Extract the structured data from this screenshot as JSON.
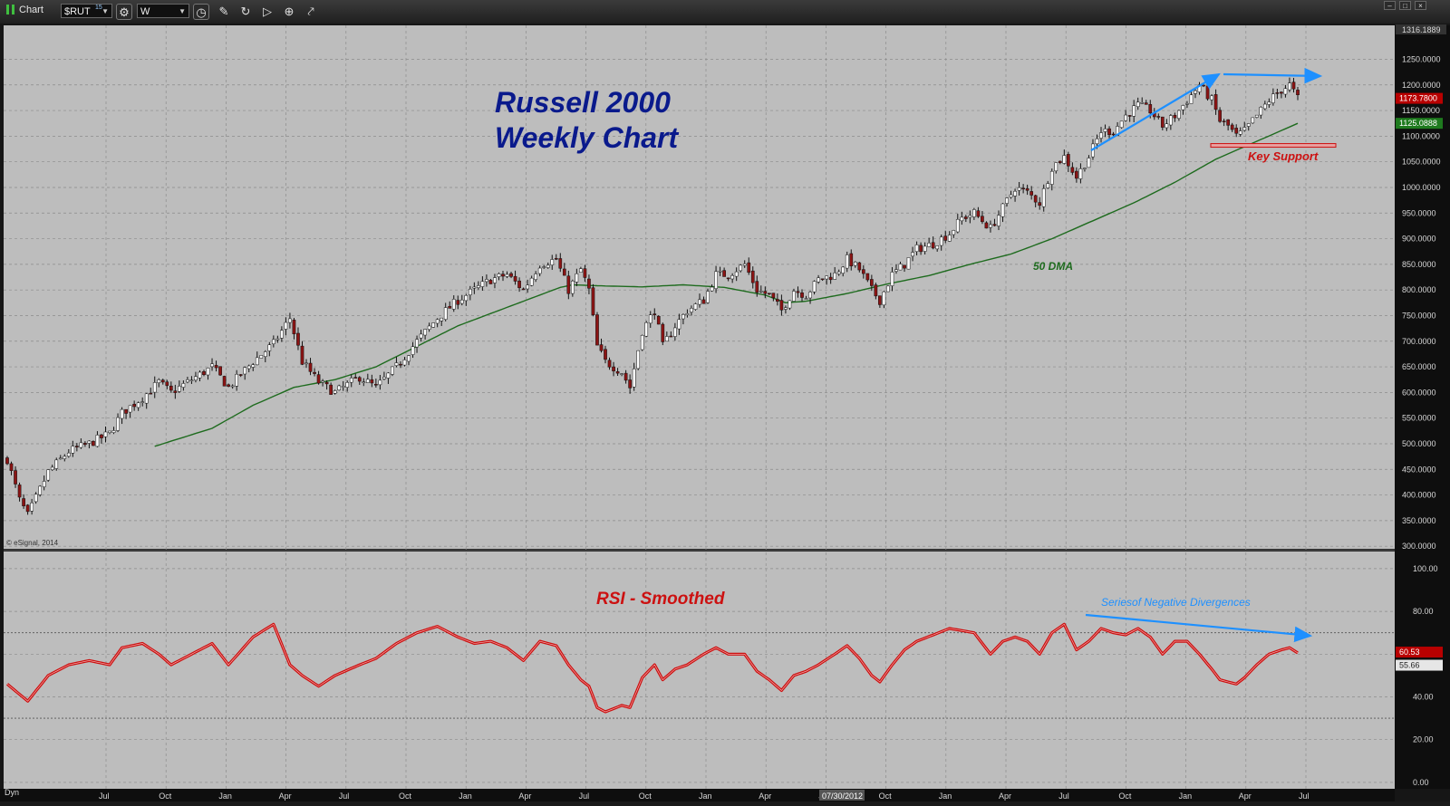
{
  "toolbar": {
    "title": "Chart",
    "symbol": "$RUT",
    "symbol_sup": "15",
    "interval": "W",
    "window_buttons": [
      "–",
      "□",
      "×"
    ]
  },
  "annotations": {
    "title_line1": "Russell 2000",
    "title_line2": "Weekly Chart",
    "dma_label": "50 DMA",
    "support_label": "Key Support",
    "rsi_title": "RSI - Smoothed",
    "divergence_label": "Seriesof Negative Divergences",
    "copyright": "© eSignal, 2014"
  },
  "footer": {
    "dyn_label": "Dyn"
  },
  "colors": {
    "panel_bg": "#bdbdbd",
    "grid": "#8c8c8c",
    "up_candle": "#ffffff",
    "down_candle": "#8b1414",
    "ma_line": "#1e6b1e",
    "rsi_line": "#cc1111",
    "annotation_blue": "#1e90ff",
    "title_navy": "#0a1a8c",
    "support_red": "#cc1111",
    "last_price_bg": "#b80000",
    "ma_value_bg": "#1e7a1e"
  },
  "chart_data": [
    {
      "type": "candlestick",
      "title": "Russell 2000 Weekly Chart",
      "symbol": "$RUT",
      "interval": "weekly",
      "period": "Mar 2009 – Jul 2014",
      "y_ticks": [
        "300.0000",
        "350.0000",
        "400.0000",
        "450.0000",
        "500.0000",
        "550.0000",
        "600.0000",
        "650.0000",
        "700.0000",
        "750.0000",
        "800.0000",
        "850.0000",
        "900.0000",
        "950.0000",
        "1000.0000",
        "1050.0000",
        "1100.0000",
        "1150.0000",
        "1200.0000",
        "1250.0000"
      ],
      "ylim": [
        295,
        1316.1889
      ],
      "x_tick_labels": [
        "Jul",
        "Oct",
        "Jan",
        "Apr",
        "Jul",
        "Oct",
        "Jan",
        "Apr",
        "Jul",
        "Oct",
        "Jan",
        "Apr",
        "Jul",
        "Oct",
        "Jan",
        "Apr",
        "Jul",
        "Oct",
        "Jan",
        "Apr",
        "Jul"
      ],
      "cursor_date": "07/30/2012",
      "max_label": "1316.1889",
      "last_price": "1173.7800",
      "ma_value": "1125.0888",
      "key_support_level": 1082,
      "close_anchors": [
        [
          0,
          470
        ],
        [
          3,
          390
        ],
        [
          5,
          360
        ],
        [
          10,
          445
        ],
        [
          15,
          485
        ],
        [
          20,
          500
        ],
        [
          25,
          520
        ],
        [
          28,
          560
        ],
        [
          33,
          590
        ],
        [
          37,
          620
        ],
        [
          40,
          600
        ],
        [
          45,
          625
        ],
        [
          50,
          650
        ],
        [
          54,
          610
        ],
        [
          60,
          660
        ],
        [
          65,
          695
        ],
        [
          69,
          745
        ],
        [
          72,
          660
        ],
        [
          76,
          620
        ],
        [
          80,
          600
        ],
        [
          86,
          630
        ],
        [
          90,
          610
        ],
        [
          95,
          650
        ],
        [
          100,
          700
        ],
        [
          105,
          745
        ],
        [
          110,
          780
        ],
        [
          114,
          800
        ],
        [
          118,
          820
        ],
        [
          122,
          830
        ],
        [
          126,
          800
        ],
        [
          130,
          850
        ],
        [
          134,
          860
        ],
        [
          137,
          800
        ],
        [
          140,
          840
        ],
        [
          142,
          800
        ],
        [
          144,
          690
        ],
        [
          146,
          660
        ],
        [
          150,
          640
        ],
        [
          152,
          610
        ],
        [
          155,
          720
        ],
        [
          158,
          760
        ],
        [
          160,
          690
        ],
        [
          163,
          730
        ],
        [
          166,
          760
        ],
        [
          170,
          780
        ],
        [
          173,
          830
        ],
        [
          176,
          830
        ],
        [
          180,
          850
        ],
        [
          183,
          800
        ],
        [
          186,
          790
        ],
        [
          189,
          760
        ],
        [
          192,
          800
        ],
        [
          195,
          790
        ],
        [
          198,
          820
        ],
        [
          202,
          830
        ],
        [
          205,
          860
        ],
        [
          208,
          840
        ],
        [
          211,
          800
        ],
        [
          213,
          780
        ],
        [
          216,
          830
        ],
        [
          219,
          850
        ],
        [
          222,
          880
        ],
        [
          226,
          890
        ],
        [
          230,
          910
        ],
        [
          233,
          940
        ],
        [
          236,
          950
        ],
        [
          240,
          920
        ],
        [
          243,
          960
        ],
        [
          246,
          1000
        ],
        [
          249,
          990
        ],
        [
          252,
          970
        ],
        [
          255,
          1040
        ],
        [
          258,
          1060
        ],
        [
          261,
          1020
        ],
        [
          264,
          1060
        ],
        [
          267,
          1110
        ],
        [
          270,
          1110
        ],
        [
          273,
          1140
        ],
        [
          276,
          1160
        ],
        [
          279,
          1150
        ],
        [
          282,
          1120
        ],
        [
          285,
          1140
        ],
        [
          288,
          1170
        ],
        [
          291,
          1200
        ],
        [
          294,
          1170
        ],
        [
          296,
          1130
        ],
        [
          298,
          1120
        ],
        [
          300,
          1100
        ],
        [
          302,
          1110
        ],
        [
          305,
          1140
        ],
        [
          308,
          1170
        ],
        [
          311,
          1190
        ],
        [
          313,
          1200
        ],
        [
          315,
          1173.78
        ]
      ],
      "ma_anchors": [
        [
          36,
          495
        ],
        [
          50,
          530
        ],
        [
          60,
          575
        ],
        [
          70,
          610
        ],
        [
          80,
          625
        ],
        [
          90,
          650
        ],
        [
          100,
          690
        ],
        [
          110,
          730
        ],
        [
          120,
          760
        ],
        [
          130,
          790
        ],
        [
          135,
          805
        ],
        [
          138,
          810
        ],
        [
          145,
          808
        ],
        [
          155,
          806
        ],
        [
          165,
          810
        ],
        [
          175,
          805
        ],
        [
          185,
          790
        ],
        [
          190,
          775
        ],
        [
          195,
          778
        ],
        [
          205,
          793
        ],
        [
          215,
          812
        ],
        [
          225,
          828
        ],
        [
          235,
          850
        ],
        [
          245,
          870
        ],
        [
          255,
          900
        ],
        [
          265,
          935
        ],
        [
          275,
          970
        ],
        [
          285,
          1010
        ],
        [
          295,
          1055
        ],
        [
          305,
          1090
        ],
        [
          315,
          1125
        ]
      ],
      "series": [
        {
          "name": "50 DMA",
          "type": "line"
        }
      ]
    },
    {
      "type": "line",
      "title": "RSI - Smoothed",
      "y_ticks": [
        "0.00",
        "20.00",
        "40.00",
        "60.00",
        "80.00",
        "100.00"
      ],
      "ylim": [
        -3,
        108
      ],
      "reference_lines": [
        70,
        30
      ],
      "last_values": [
        "60.53",
        "55.66"
      ],
      "anchors": [
        [
          0,
          46
        ],
        [
          5,
          38
        ],
        [
          10,
          50
        ],
        [
          15,
          55
        ],
        [
          20,
          57
        ],
        [
          25,
          55
        ],
        [
          28,
          63
        ],
        [
          33,
          65
        ],
        [
          37,
          60
        ],
        [
          40,
          55
        ],
        [
          45,
          60
        ],
        [
          50,
          65
        ],
        [
          54,
          55
        ],
        [
          60,
          68
        ],
        [
          65,
          74
        ],
        [
          69,
          55
        ],
        [
          72,
          50
        ],
        [
          76,
          45
        ],
        [
          80,
          50
        ],
        [
          86,
          55
        ],
        [
          90,
          58
        ],
        [
          95,
          65
        ],
        [
          100,
          70
        ],
        [
          105,
          73
        ],
        [
          110,
          68
        ],
        [
          114,
          65
        ],
        [
          118,
          66
        ],
        [
          122,
          63
        ],
        [
          126,
          57
        ],
        [
          130,
          66
        ],
        [
          134,
          64
        ],
        [
          137,
          55
        ],
        [
          140,
          48
        ],
        [
          142,
          45
        ],
        [
          144,
          35
        ],
        [
          146,
          33
        ],
        [
          150,
          36
        ],
        [
          152,
          35
        ],
        [
          155,
          49
        ],
        [
          158,
          55
        ],
        [
          160,
          48
        ],
        [
          163,
          53
        ],
        [
          166,
          55
        ],
        [
          170,
          60
        ],
        [
          173,
          63
        ],
        [
          176,
          60
        ],
        [
          180,
          60
        ],
        [
          183,
          52
        ],
        [
          186,
          48
        ],
        [
          189,
          43
        ],
        [
          192,
          50
        ],
        [
          195,
          52
        ],
        [
          198,
          55
        ],
        [
          202,
          60
        ],
        [
          205,
          64
        ],
        [
          208,
          58
        ],
        [
          211,
          50
        ],
        [
          213,
          47
        ],
        [
          216,
          55
        ],
        [
          219,
          62
        ],
        [
          222,
          66
        ],
        [
          226,
          69
        ],
        [
          230,
          72
        ],
        [
          233,
          71
        ],
        [
          236,
          70
        ],
        [
          240,
          60
        ],
        [
          243,
          66
        ],
        [
          246,
          68
        ],
        [
          249,
          66
        ],
        [
          252,
          60
        ],
        [
          255,
          70
        ],
        [
          258,
          74
        ],
        [
          261,
          62
        ],
        [
          264,
          66
        ],
        [
          267,
          72
        ],
        [
          270,
          70
        ],
        [
          273,
          69
        ],
        [
          276,
          72
        ],
        [
          279,
          68
        ],
        [
          282,
          60
        ],
        [
          285,
          66
        ],
        [
          288,
          66
        ],
        [
          291,
          60
        ],
        [
          294,
          53
        ],
        [
          296,
          48
        ],
        [
          298,
          47
        ],
        [
          300,
          46
        ],
        [
          302,
          49
        ],
        [
          305,
          55
        ],
        [
          308,
          60
        ],
        [
          311,
          62
        ],
        [
          313,
          63
        ],
        [
          315,
          60.53
        ]
      ]
    }
  ]
}
